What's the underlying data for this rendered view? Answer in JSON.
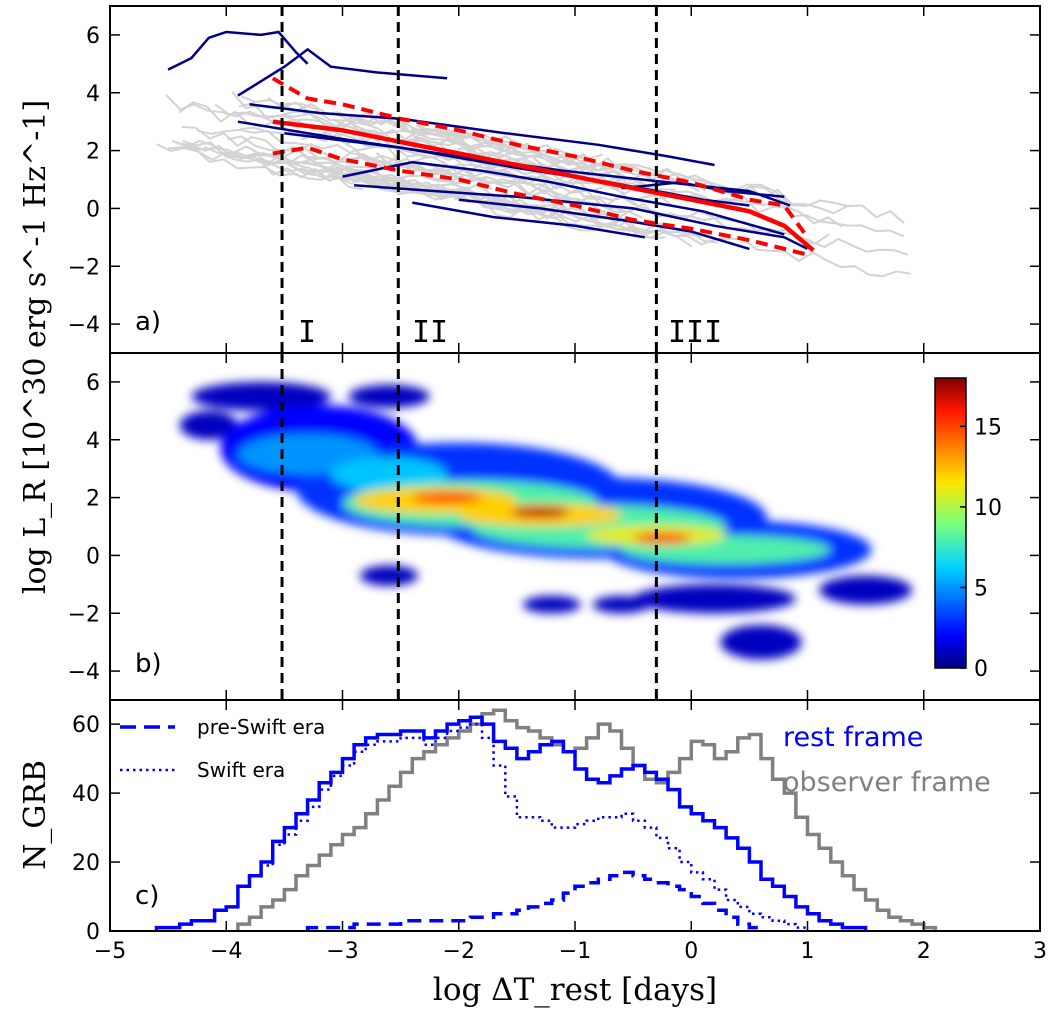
{
  "chart_data": [
    {
      "panel": "a",
      "type": "line",
      "panel_label": "a)",
      "ylabel": "log L_R [10^30 erg s^-1 Hz^-1]",
      "xlim": [
        -5,
        3
      ],
      "ylim": [
        -5,
        7
      ],
      "yticks": [
        "6",
        "4",
        "2",
        "0",
        "−2",
        "−4"
      ],
      "region_labels": [
        "I",
        "II",
        "III"
      ],
      "colors": {
        "grb_gray": "#d3d3d3",
        "grb_navy": "#00008b",
        "mean": "#ff0000"
      },
      "series": [
        {
          "role": "blue light curves",
          "lines": [
            [
              [
                -4.5,
                4.8
              ],
              [
                -4.3,
                5.2
              ],
              [
                -4.15,
                5.9
              ],
              [
                -4.0,
                6.1
              ],
              [
                -3.7,
                6.0
              ],
              [
                -3.55,
                6.1
              ],
              [
                -3.4,
                5.4
              ],
              [
                -3.3,
                5.0
              ]
            ],
            [
              [
                -3.9,
                3.9
              ],
              [
                -3.7,
                4.4
              ],
              [
                -3.5,
                4.9
              ],
              [
                -3.3,
                5.5
              ],
              [
                -3.1,
                4.9
              ],
              [
                -2.7,
                4.7
              ],
              [
                -2.4,
                4.6
              ],
              [
                -2.1,
                4.5
              ]
            ],
            [
              [
                -3.8,
                3.6
              ],
              [
                -3.2,
                3.3
              ],
              [
                -2.5,
                3.1
              ],
              [
                -1.6,
                2.6
              ],
              [
                -0.8,
                2.2
              ],
              [
                -0.2,
                1.8
              ],
              [
                0.2,
                1.5
              ]
            ],
            [
              [
                -3.9,
                3.0
              ],
              [
                -3.0,
                2.4
              ],
              [
                -2.0,
                1.8
              ],
              [
                -1.1,
                1.3
              ],
              [
                -0.2,
                0.9
              ],
              [
                0.5,
                0.6
              ],
              [
                0.85,
                0.1
              ]
            ],
            [
              [
                -3.5,
                2.6
              ],
              [
                -2.5,
                2.1
              ],
              [
                -1.5,
                1.4
              ],
              [
                -0.7,
                0.9
              ],
              [
                0.1,
                0.3
              ],
              [
                0.5,
                0.1
              ]
            ],
            [
              [
                -3.0,
                1.1
              ],
              [
                -2.4,
                1.6
              ],
              [
                -1.8,
                1.3
              ],
              [
                -1.2,
                0.9
              ],
              [
                -0.6,
                0.4
              ],
              [
                0.1,
                -0.1
              ],
              [
                0.8,
                -0.9
              ]
            ],
            [
              [
                -2.9,
                0.8
              ],
              [
                -2.2,
                0.6
              ],
              [
                -1.5,
                0.4
              ],
              [
                -0.5,
                0.0
              ],
              [
                0.2,
                -0.6
              ],
              [
                0.8,
                -1.0
              ],
              [
                1.0,
                -1.4
              ]
            ],
            [
              [
                -2.0,
                0.3
              ],
              [
                -1.3,
                0.0
              ],
              [
                -0.6,
                -0.4
              ],
              [
                0.0,
                -0.8
              ],
              [
                0.5,
                -1.4
              ]
            ],
            [
              [
                -0.6,
                0.7
              ],
              [
                -0.1,
                0.9
              ],
              [
                0.3,
                0.6
              ],
              [
                0.8,
                0.4
              ]
            ],
            [
              [
                -2.4,
                0.2
              ],
              [
                -1.7,
                -0.3
              ],
              [
                -1.0,
                -0.6
              ],
              [
                -0.4,
                -1.0
              ]
            ]
          ]
        },
        {
          "role": "mean (solid red)",
          "points": [
            [
              -3.6,
              3.0
            ],
            [
              -3.0,
              2.7
            ],
            [
              -2.5,
              2.3
            ],
            [
              -2.0,
              1.9
            ],
            [
              -1.5,
              1.5
            ],
            [
              -1.0,
              1.1
            ],
            [
              -0.5,
              0.7
            ],
            [
              0.0,
              0.3
            ],
            [
              0.5,
              -0.1
            ],
            [
              0.8,
              -0.6
            ],
            [
              1.05,
              -1.45
            ]
          ]
        },
        {
          "role": "mean + sigma (dashed red)",
          "points": [
            [
              -3.6,
              4.5
            ],
            [
              -3.3,
              3.8
            ],
            [
              -3.0,
              3.6
            ],
            [
              -2.5,
              3.1
            ],
            [
              -2.0,
              2.7
            ],
            [
              -1.5,
              2.2
            ],
            [
              -1.0,
              1.8
            ],
            [
              -0.5,
              1.3
            ],
            [
              0.0,
              0.9
            ],
            [
              0.5,
              0.3
            ],
            [
              0.8,
              0.1
            ],
            [
              1.0,
              -1.0
            ]
          ]
        },
        {
          "role": "mean - sigma (dashed red)",
          "points": [
            [
              -3.6,
              1.9
            ],
            [
              -3.3,
              2.1
            ],
            [
              -3.0,
              1.7
            ],
            [
              -2.5,
              1.3
            ],
            [
              -2.0,
              1.0
            ],
            [
              -1.5,
              0.5
            ],
            [
              -1.0,
              0.1
            ],
            [
              -0.5,
              -0.4
            ],
            [
              0.0,
              -0.7
            ],
            [
              0.5,
              -1.1
            ],
            [
              1.0,
              -1.6
            ]
          ]
        }
      ]
    },
    {
      "panel": "b",
      "type": "heatmap",
      "panel_label": "b)",
      "xlim": [
        -5,
        3
      ],
      "ylim": [
        -5,
        7
      ],
      "yticks": [
        "6",
        "4",
        "2",
        "0",
        "−2",
        "−4"
      ],
      "colorbar": {
        "range": [
          0,
          18
        ],
        "ticks": [
          "0",
          "5",
          "10",
          "15"
        ]
      },
      "density_blobs": [
        {
          "x": -4.15,
          "y": 4.5,
          "w": 0.5,
          "h": 1.0,
          "v": 1
        },
        {
          "x": -3.7,
          "y": 5.5,
          "w": 1.2,
          "h": 1.0,
          "v": 1
        },
        {
          "x": -2.6,
          "y": 5.5,
          "w": 0.7,
          "h": 0.8,
          "v": 1
        },
        {
          "x": -3.2,
          "y": 3.7,
          "w": 1.7,
          "h": 3.0,
          "v": 2
        },
        {
          "x": -2.0,
          "y": 2.3,
          "w": 2.8,
          "h": 3.2,
          "v": 3
        },
        {
          "x": -0.8,
          "y": 1.3,
          "w": 2.9,
          "h": 2.8,
          "v": 3
        },
        {
          "x": 0.4,
          "y": 0.2,
          "w": 2.3,
          "h": 2.0,
          "v": 3
        },
        {
          "x": 1.5,
          "y": -1.2,
          "w": 0.8,
          "h": 1.0,
          "v": 1
        },
        {
          "x": 0.2,
          "y": -1.5,
          "w": 1.4,
          "h": 1.0,
          "v": 1
        },
        {
          "x": -2.6,
          "y": -0.7,
          "w": 0.5,
          "h": 0.7,
          "v": 1
        },
        {
          "x": -1.2,
          "y": -1.7,
          "w": 0.5,
          "h": 0.6,
          "v": 1
        },
        {
          "x": -0.6,
          "y": -1.7,
          "w": 0.5,
          "h": 0.6,
          "v": 1
        },
        {
          "x": 0.6,
          "y": -3.0,
          "w": 0.7,
          "h": 1.2,
          "v": 1
        },
        {
          "x": -3.3,
          "y": 3.5,
          "w": 1.2,
          "h": 1.4,
          "v": 5
        },
        {
          "x": -2.6,
          "y": 2.8,
          "w": 1.0,
          "h": 1.2,
          "v": 6
        },
        {
          "x": -1.9,
          "y": 1.8,
          "w": 2.2,
          "h": 1.6,
          "v": 8
        },
        {
          "x": -0.8,
          "y": 1.0,
          "w": 2.2,
          "h": 1.5,
          "v": 8
        },
        {
          "x": 0.3,
          "y": 0.2,
          "w": 1.8,
          "h": 1.0,
          "v": 8
        },
        {
          "x": -2.2,
          "y": 1.9,
          "w": 1.4,
          "h": 0.9,
          "v": 12
        },
        {
          "x": -1.3,
          "y": 1.4,
          "w": 1.4,
          "h": 0.8,
          "v": 12
        },
        {
          "x": -0.3,
          "y": 0.7,
          "w": 1.2,
          "h": 0.7,
          "v": 11
        },
        {
          "x": -2.1,
          "y": 2.0,
          "w": 0.6,
          "h": 0.4,
          "v": 15
        },
        {
          "x": -1.3,
          "y": 1.5,
          "w": 0.5,
          "h": 0.4,
          "v": 17
        },
        {
          "x": -0.25,
          "y": 0.6,
          "w": 0.5,
          "h": 0.35,
          "v": 16
        }
      ]
    },
    {
      "panel": "c",
      "type": "line",
      "panel_label": "c)",
      "ylabel": "N_GRB",
      "xlabel": "log ΔT_rest [days]",
      "xlim": [
        -5,
        3
      ],
      "ylim": [
        0,
        67
      ],
      "xticks": [
        "−5",
        "−4",
        "−3",
        "−2",
        "−1",
        "0",
        "1",
        "2",
        "3"
      ],
      "yticks": [
        "0",
        "20",
        "40",
        "60"
      ],
      "legend": [
        {
          "label": "pre-Swift era",
          "style": "dashed"
        },
        {
          "label": "Swift era",
          "style": "dotted"
        }
      ],
      "frame_labels": [
        {
          "label": "rest frame",
          "color": "#0000ff"
        },
        {
          "label": "observer frame",
          "color": "#808080"
        }
      ],
      "series": [
        {
          "role": "rest frame (blue)",
          "color": "#0000ff",
          "x_start": -4.6,
          "bin": 0.1,
          "values": [
            1,
            1,
            2,
            3,
            3,
            6,
            7,
            13,
            16,
            20,
            26,
            30,
            34,
            38,
            43,
            46,
            50,
            54,
            56,
            57,
            57,
            58,
            58,
            56,
            58,
            60,
            61,
            62,
            60,
            55,
            53,
            50,
            52,
            54,
            55,
            52,
            47,
            44,
            43,
            45,
            47,
            48,
            46,
            44,
            41,
            36,
            34,
            32,
            30,
            27,
            24,
            20,
            15,
            13,
            10,
            7,
            5,
            3,
            2,
            1,
            1
          ]
        },
        {
          "role": "observer frame (gray)",
          "color": "#808080",
          "x_start": -3.9,
          "bin": 0.1,
          "values": [
            2,
            4,
            7,
            9,
            12,
            16,
            19,
            22,
            25,
            28,
            30,
            34,
            38,
            42,
            46,
            50,
            52,
            54,
            56,
            58,
            60,
            63,
            64,
            61,
            59,
            58,
            56,
            54,
            52,
            53,
            56,
            60,
            58,
            53,
            48,
            44,
            43,
            46,
            50,
            55,
            54,
            50,
            52,
            56,
            57,
            50,
            44,
            40,
            33,
            28,
            24,
            20,
            16,
            12,
            9,
            6,
            4,
            3,
            2,
            1
          ]
        },
        {
          "role": "rest frame, Swift era (blue dotted)",
          "color": "#0000ff",
          "x_start": -4.6,
          "bin": 0.1,
          "values": [
            1,
            1,
            2,
            3,
            3,
            6,
            7,
            13,
            16,
            19,
            25,
            28,
            32,
            36,
            41,
            45,
            48,
            52,
            54,
            55,
            55,
            56,
            56,
            54,
            56,
            58,
            59,
            60,
            56,
            48,
            39,
            33,
            33,
            32,
            30,
            30,
            31,
            32,
            33,
            33,
            34,
            32,
            30,
            27,
            24,
            20,
            17,
            15,
            12,
            9,
            7,
            5,
            4,
            3,
            2,
            1
          ]
        },
        {
          "role": "rest frame, pre-Swift era (blue dashed)",
          "color": "#0000ff",
          "x_start": -3.3,
          "bin": 0.1,
          "values": [
            1,
            1,
            1,
            1,
            2,
            2,
            2,
            2,
            3,
            3,
            3,
            3,
            3,
            3,
            4,
            4,
            5,
            5,
            6,
            7,
            8,
            9,
            11,
            13,
            14,
            15,
            16,
            17,
            16,
            15,
            14,
            13,
            12,
            10,
            8,
            6,
            4,
            2,
            1
          ]
        }
      ]
    }
  ]
}
